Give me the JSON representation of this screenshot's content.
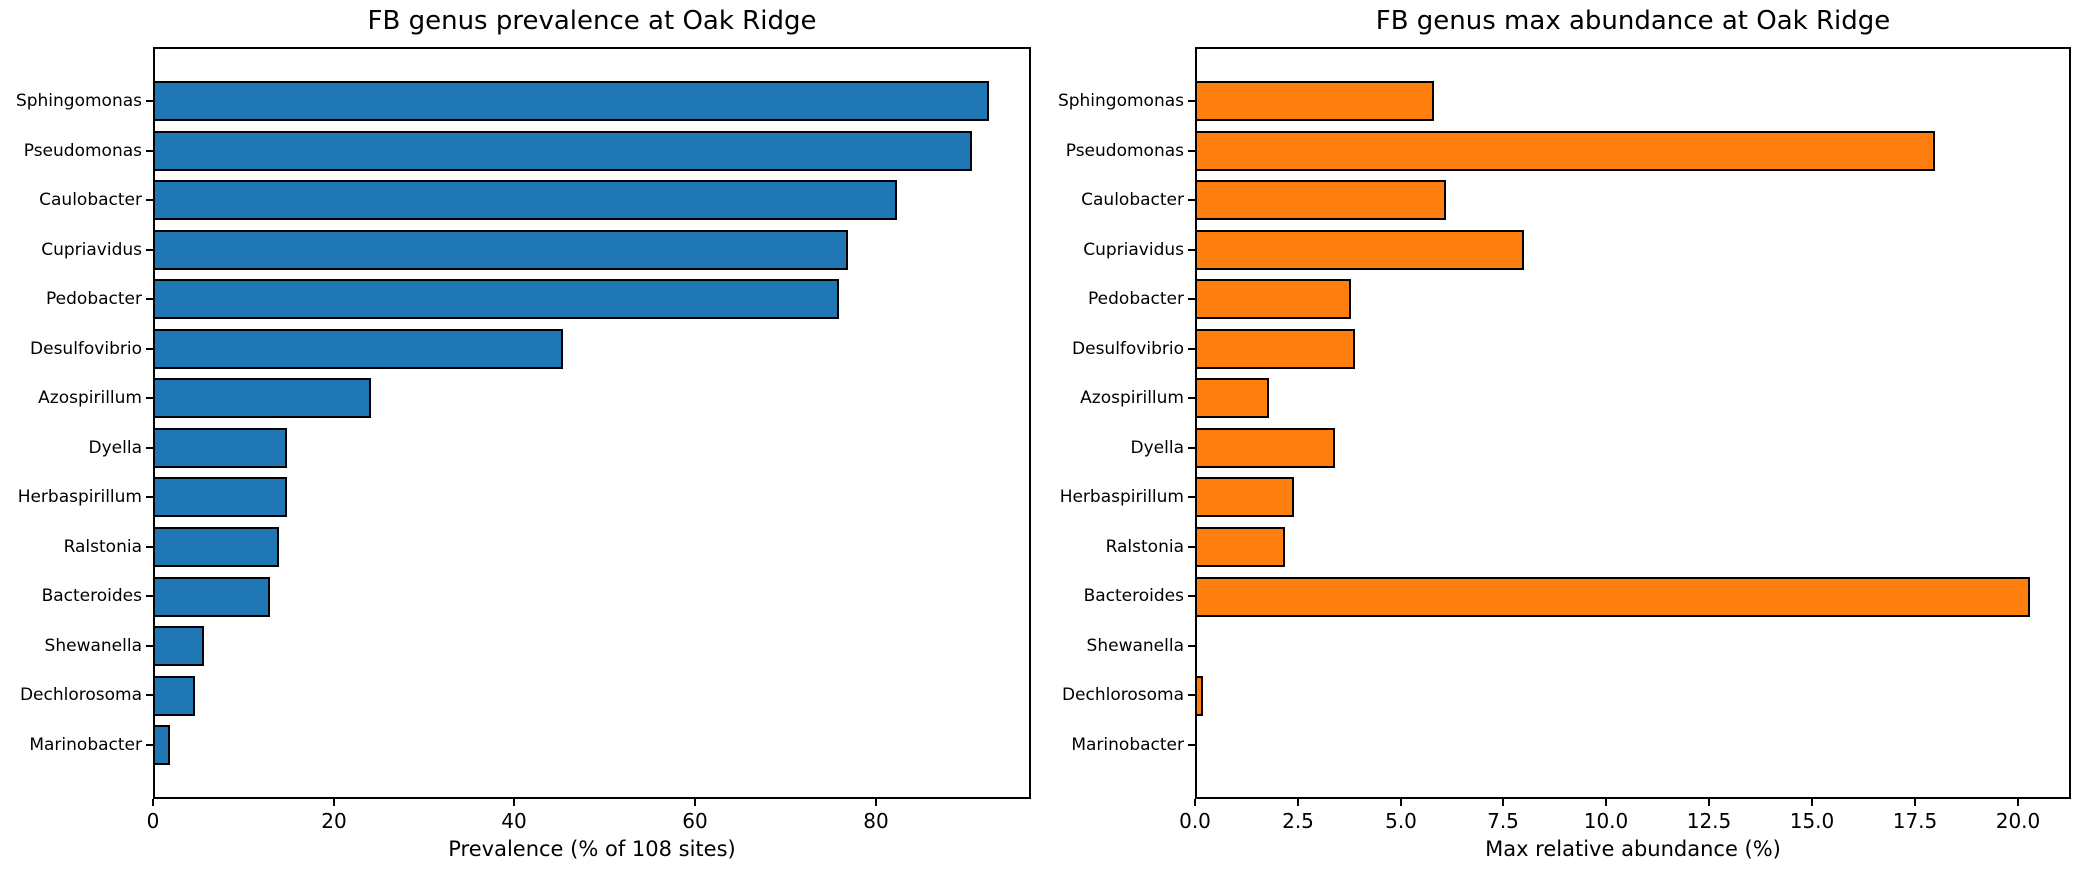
{
  "figure": {
    "background": "#ffffff",
    "text_color": "#000000"
  },
  "chart_data": [
    {
      "type": "bar",
      "orientation": "horizontal",
      "title": "FB genus prevalence at Oak Ridge",
      "xlabel": "Prevalence (% of 108 sites)",
      "ylabel": "",
      "categories": [
        "Sphingomonas",
        "Pseudomonas",
        "Caulobacter",
        "Cupriavidus",
        "Pedobacter",
        "Desulfovibrio",
        "Azospirillum",
        "Dyella",
        "Herbaspirillum",
        "Ralstonia",
        "Bacteroides",
        "Shewanella",
        "Dechlorosoma",
        "Marinobacter"
      ],
      "values": [
        92.6,
        90.7,
        82.4,
        76.9,
        75.9,
        45.4,
        24.1,
        14.8,
        14.8,
        13.9,
        13.0,
        5.6,
        4.6,
        1.9
      ],
      "xlim": [
        0,
        97.2
      ],
      "xticks": [
        0,
        20,
        40,
        60,
        80
      ],
      "xtick_labels": [
        "0",
        "20",
        "40",
        "60",
        "80"
      ],
      "bar_color": "#1f77b4",
      "edge_color": "#000000",
      "grid": false,
      "legend": null
    },
    {
      "type": "bar",
      "orientation": "horizontal",
      "title": "FB genus max abundance at Oak Ridge",
      "xlabel": "Max relative abundance (%)",
      "ylabel": "",
      "categories": [
        "Sphingomonas",
        "Pseudomonas",
        "Caulobacter",
        "Cupriavidus",
        "Pedobacter",
        "Desulfovibrio",
        "Azospirillum",
        "Dyella",
        "Herbaspirillum",
        "Ralstonia",
        "Bacteroides",
        "Shewanella",
        "Dechlorosoma",
        "Marinobacter"
      ],
      "values": [
        5.8,
        18.0,
        6.1,
        8.0,
        3.8,
        3.9,
        1.8,
        3.4,
        2.4,
        2.2,
        20.3,
        0.05,
        0.2,
        0.05
      ],
      "xlim": [
        0,
        21.3
      ],
      "xticks": [
        0,
        2.5,
        5,
        7.5,
        10,
        12.5,
        15,
        17.5,
        20
      ],
      "xtick_labels": [
        "0.0",
        "2.5",
        "5.0",
        "7.5",
        "10.0",
        "12.5",
        "15.0",
        "17.5",
        "20.0"
      ],
      "bar_color": "#ff7f0e",
      "edge_color": "#000000",
      "grid": false,
      "legend": null
    }
  ]
}
